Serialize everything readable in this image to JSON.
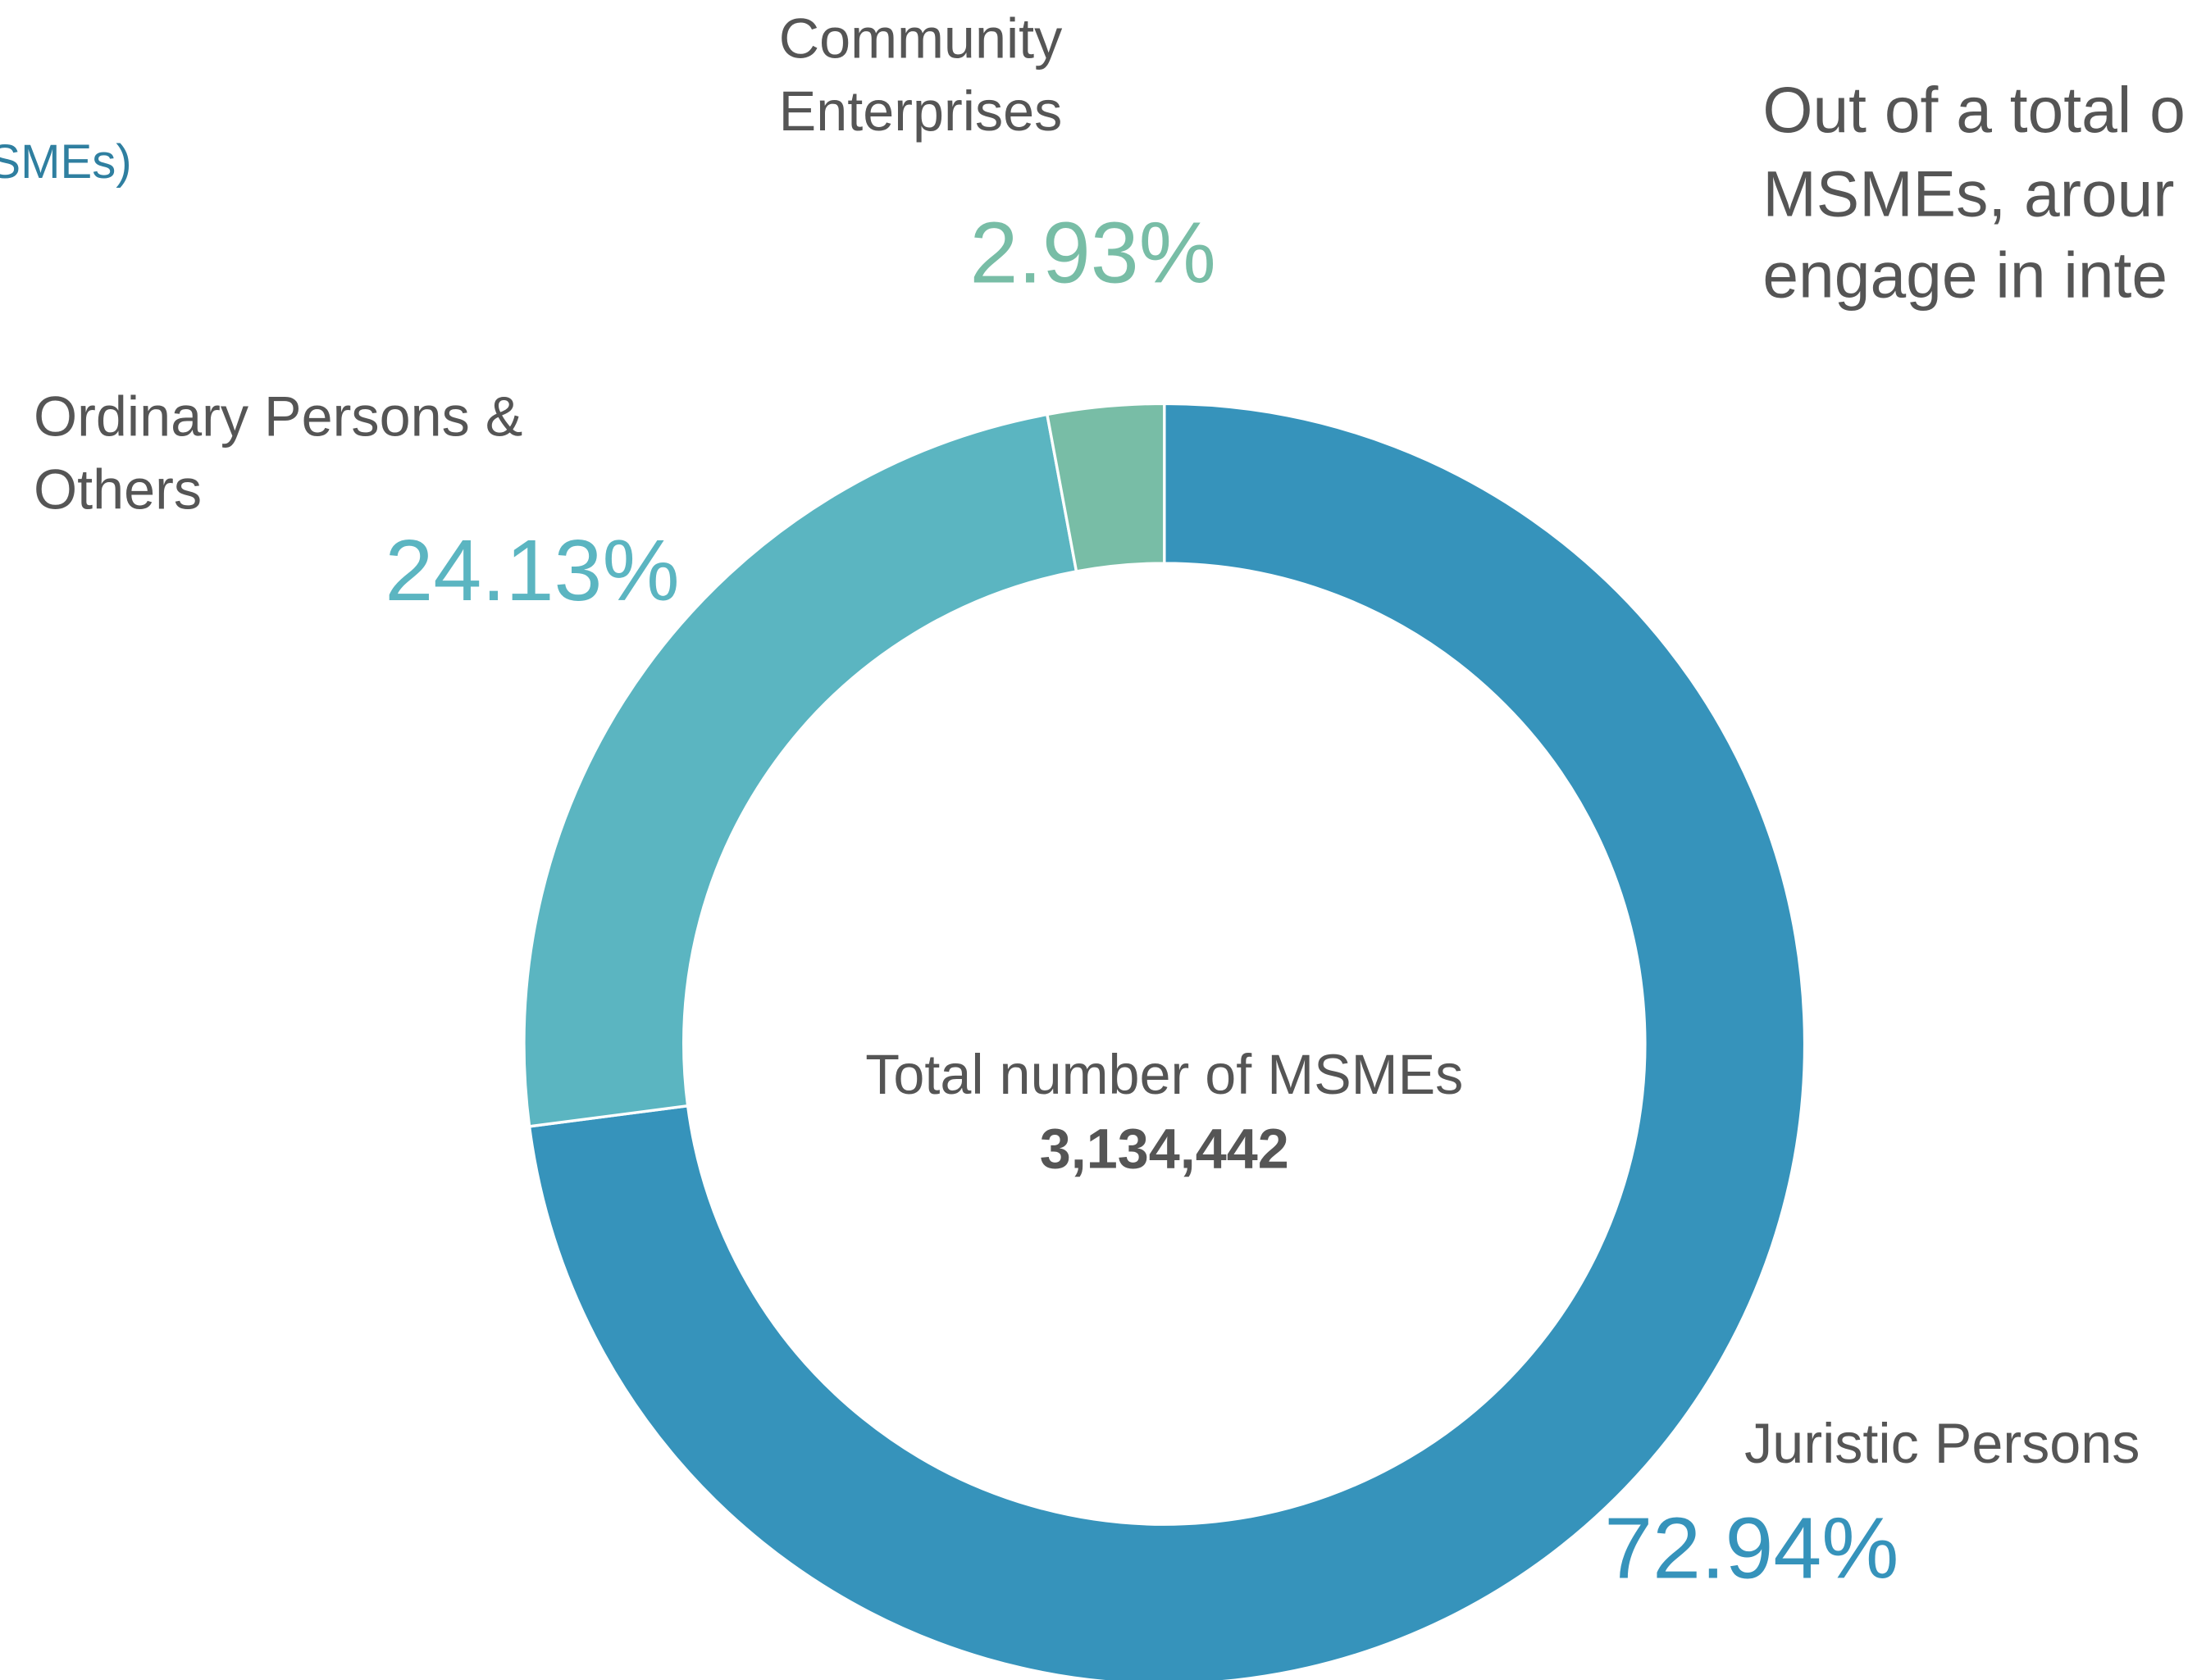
{
  "chart_data": {
    "type": "donut",
    "categories": [
      "Juristic Persons",
      "Ordinary Persons & Others",
      "Community Enterprises"
    ],
    "values": [
      72.94,
      24.13,
      2.93
    ],
    "value_labels": [
      "72.94%",
      "24.13%",
      "2.93%"
    ],
    "colors": [
      "#3693bb",
      "#5bb5c1",
      "#78bda6"
    ],
    "center_label": "Total number of MSMEs",
    "center_value": "3,134,442",
    "annotations": [
      "SMEs)"
    ],
    "side_text": [
      "Out of a total o",
      "MSMEs, arour",
      "engage in inte"
    ]
  }
}
